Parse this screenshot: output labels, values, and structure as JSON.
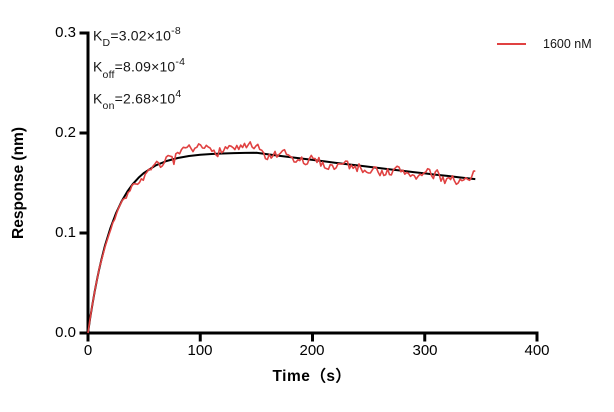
{
  "figure": {
    "description": "Binding kinetics sensorgram (response vs time) with exponential fit"
  },
  "annotations": {
    "lines": [
      {
        "base": "K",
        "sub": "D",
        "eq": "=3.02×10",
        "sup": "-8"
      },
      {
        "base": "K",
        "sub": "off",
        "eq": "=8.09×10",
        "sup": "-4"
      },
      {
        "base": "K",
        "sub": "on",
        "eq": "=2.68×10",
        "sup": "4"
      }
    ]
  },
  "chart_data": {
    "type": "line",
    "title": "",
    "xlabel": "Time（s）",
    "ylabel": "Response (nm)",
    "xlim": [
      0,
      400
    ],
    "ylim": [
      0,
      0.3
    ],
    "xticks": [
      0,
      100,
      200,
      300,
      400
    ],
    "yticks": [
      0,
      0.1,
      0.2,
      0.3
    ],
    "xtick_labels": [
      "0",
      "100",
      "200",
      "300",
      "400"
    ],
    "ytick_labels": [
      "0.0",
      "0.1",
      "0.2",
      "0.3"
    ],
    "grid": false,
    "axis_color": "#000000",
    "legend": {
      "position": "top-right",
      "entries": [
        {
          "label": "1600 nM",
          "color": "#e04141"
        }
      ]
    },
    "kinetic_constants": {
      "KD": "3.02e-8",
      "Koff": "8.09e-4",
      "Kon": "2.68e4"
    },
    "association_end_s": 150,
    "series": [
      {
        "name": "fit",
        "color": "#000000",
        "width": 2,
        "points": [
          [
            0,
            0
          ],
          [
            2,
            0.0151
          ],
          [
            4,
            0.029
          ],
          [
            6,
            0.0416
          ],
          [
            8,
            0.0533
          ],
          [
            10,
            0.0639
          ],
          [
            12,
            0.0737
          ],
          [
            15,
            0.0868
          ],
          [
            20,
            0.1052
          ],
          [
            25,
            0.12
          ],
          [
            30,
            0.1319
          ],
          [
            35,
            0.1414
          ],
          [
            40,
            0.1491
          ],
          [
            45,
            0.1552
          ],
          [
            50,
            0.1602
          ],
          [
            60,
            0.1674
          ],
          [
            70,
            0.172
          ],
          [
            80,
            0.175
          ],
          [
            90,
            0.177
          ],
          [
            100,
            0.1782
          ],
          [
            110,
            0.179
          ],
          [
            120,
            0.1795
          ],
          [
            130,
            0.1799
          ],
          [
            140,
            0.1801
          ],
          [
            150,
            0.1802
          ],
          [
            160,
            0.1788
          ],
          [
            170,
            0.1773
          ],
          [
            180,
            0.1759
          ],
          [
            190,
            0.1745
          ],
          [
            200,
            0.1731
          ],
          [
            210,
            0.1717
          ],
          [
            220,
            0.1703
          ],
          [
            230,
            0.1689
          ],
          [
            240,
            0.1676
          ],
          [
            250,
            0.1662
          ],
          [
            260,
            0.1649
          ],
          [
            270,
            0.1635
          ],
          [
            280,
            0.1622
          ],
          [
            290,
            0.1609
          ],
          [
            300,
            0.1596
          ],
          [
            310,
            0.1583
          ],
          [
            320,
            0.1571
          ],
          [
            330,
            0.1558
          ],
          [
            340,
            0.1545
          ],
          [
            345,
            0.1539
          ]
        ]
      },
      {
        "name": "1600 nM measured",
        "color": "#e04141",
        "width": 1.6,
        "t_end": 345,
        "sample_step": 1.7,
        "noise": {
          "seed": 7,
          "base": 0.0018,
          "extra": 0.0036,
          "corr": 0.45,
          "spike_prob": 0.05,
          "spike_amp": 0.006
        },
        "bias_points": [
          [
            0,
            0
          ],
          [
            20,
            0
          ],
          [
            40,
            -0.003
          ],
          [
            55,
            -0.004
          ],
          [
            68,
            0
          ],
          [
            85,
            0.002
          ],
          [
            100,
            0.004
          ],
          [
            115,
            0.005
          ],
          [
            130,
            0.006
          ],
          [
            145,
            0.004
          ],
          [
            152,
            0.001
          ],
          [
            160,
            -0.003
          ],
          [
            172,
            -0.001
          ],
          [
            188,
            -0.004
          ],
          [
            200,
            -0.001
          ],
          [
            215,
            -0.003
          ],
          [
            228,
            0
          ],
          [
            240,
            -0.002
          ],
          [
            252,
            0
          ],
          [
            268,
            -0.003
          ],
          [
            280,
            -0.001
          ],
          [
            295,
            -0.002
          ],
          [
            308,
            -0.001
          ],
          [
            318,
            -0.003
          ],
          [
            326,
            0
          ],
          [
            333,
            -0.005
          ],
          [
            337,
            -0.001
          ],
          [
            341,
            -0.007
          ],
          [
            345,
            0.01
          ]
        ]
      }
    ]
  }
}
